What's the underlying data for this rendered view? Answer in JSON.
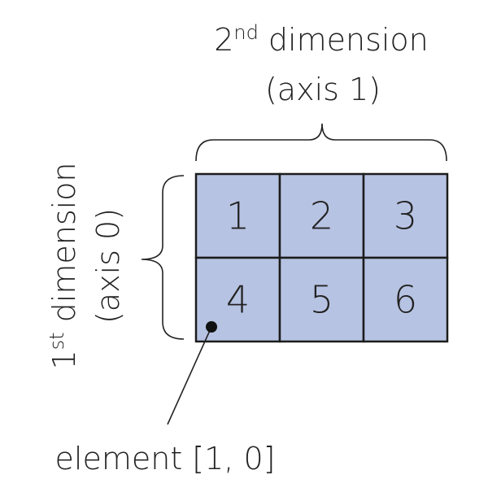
{
  "axis1": {
    "prefix": "2",
    "sup": "nd",
    "suffix": " dimension",
    "sub": "(axis 1)"
  },
  "axis0": {
    "prefix": "1",
    "sup": "st",
    "suffix": " dimension",
    "sub": "(axis 0)"
  },
  "array": {
    "values": [
      "1",
      "2",
      "3",
      "4",
      "5",
      "6"
    ],
    "cell_fill": "#b7c3e2",
    "grid_stroke": "#1c1c1c"
  },
  "callout": {
    "text": "element [1, 0]"
  }
}
